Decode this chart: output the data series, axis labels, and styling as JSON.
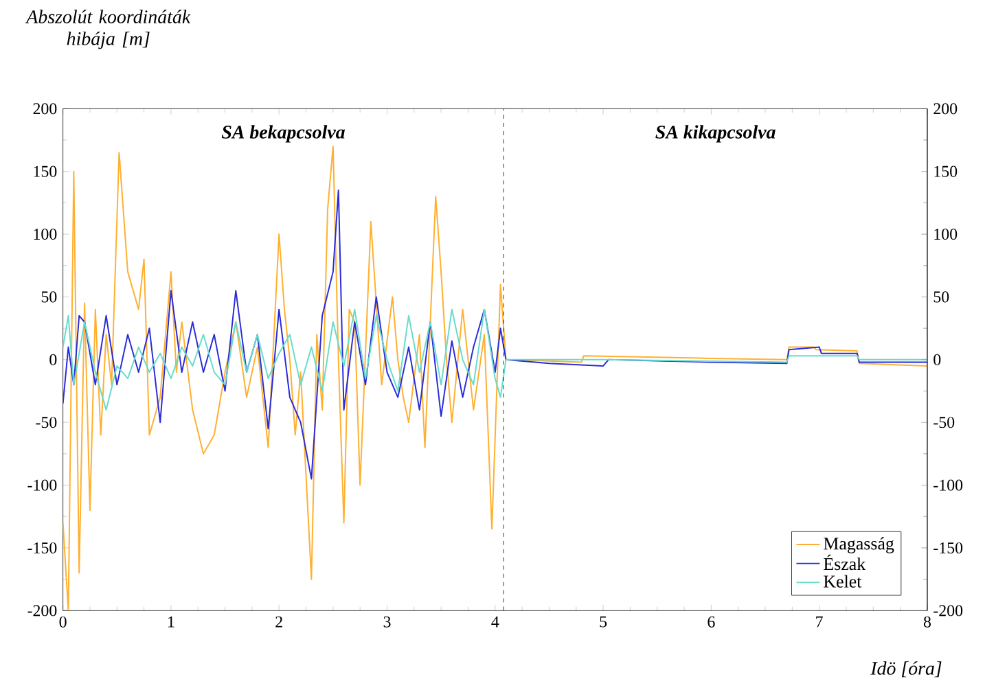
{
  "chart_data": {
    "type": "line",
    "xlabel": "Idö [óra]",
    "ylabel": "Abszolút koordináták hibája [m]",
    "xlim": [
      0,
      8
    ],
    "xticks": [
      0,
      1,
      2,
      3,
      4,
      5,
      6,
      7,
      8
    ],
    "ylim": [
      -200,
      200
    ],
    "yticks": [
      -200,
      -150,
      -100,
      -50,
      0,
      50,
      100,
      150,
      200
    ],
    "y2lim": [
      -200,
      200
    ],
    "y2ticks": [
      -200,
      -150,
      -100,
      -50,
      0,
      50,
      100,
      150,
      200
    ],
    "legend": "bottom right",
    "marker": "none",
    "line_style": "solid",
    "annotations": [
      "SA bekapcsolva",
      "SA kikapcsolva"
    ],
    "ref_lines": [
      {
        "axis": "x",
        "value": 4.08,
        "line_style": "dashed",
        "color": "#000000"
      }
    ],
    "series": [
      {
        "name": "Magasság",
        "color": "#ffb030",
        "x": [
          0,
          0.05,
          0.1,
          0.15,
          0.2,
          0.25,
          0.3,
          0.35,
          0.4,
          0.45,
          0.52,
          0.6,
          0.7,
          0.75,
          0.8,
          0.9,
          0.95,
          1.0,
          1.05,
          1.1,
          1.2,
          1.3,
          1.4,
          1.5,
          1.6,
          1.7,
          1.8,
          1.9,
          2.0,
          2.05,
          2.1,
          2.15,
          2.2,
          2.3,
          2.35,
          2.4,
          2.45,
          2.5,
          2.55,
          2.6,
          2.65,
          2.7,
          2.75,
          2.85,
          2.95,
          3.05,
          3.1,
          3.15,
          3.2,
          3.3,
          3.35,
          3.45,
          3.5,
          3.55,
          3.6,
          3.7,
          3.8,
          3.9,
          3.97,
          4.05,
          4.1,
          4.5,
          4.8,
          4.82,
          5.5,
          6.0,
          6.7,
          6.72,
          6.95,
          6.97,
          7.35,
          7.37,
          8.0
        ],
        "values": [
          -130,
          -200,
          150,
          -170,
          45,
          -120,
          40,
          -60,
          20,
          -20,
          165,
          70,
          40,
          80,
          -60,
          -30,
          20,
          70,
          -10,
          30,
          -40,
          -75,
          -60,
          -10,
          30,
          -30,
          10,
          -70,
          100,
          40,
          0,
          -60,
          -10,
          -175,
          20,
          -40,
          120,
          170,
          0,
          -130,
          40,
          30,
          -100,
          110,
          -20,
          50,
          0,
          -30,
          -50,
          20,
          -70,
          130,
          70,
          0,
          -50,
          40,
          -40,
          20,
          -135,
          60,
          0,
          -1,
          -2,
          3,
          2,
          1,
          0,
          10,
          10,
          8,
          7,
          -3,
          -5
        ]
      },
      {
        "name": "Észak",
        "color": "#2b2bdb",
        "x": [
          0,
          0.05,
          0.1,
          0.15,
          0.2,
          0.3,
          0.4,
          0.5,
          0.6,
          0.7,
          0.8,
          0.9,
          1.0,
          1.1,
          1.2,
          1.3,
          1.4,
          1.5,
          1.6,
          1.7,
          1.8,
          1.9,
          2.0,
          2.1,
          2.2,
          2.3,
          2.4,
          2.5,
          2.55,
          2.6,
          2.7,
          2.8,
          2.9,
          3.0,
          3.1,
          3.2,
          3.3,
          3.4,
          3.5,
          3.6,
          3.7,
          3.8,
          3.9,
          4.0,
          4.05,
          4.1,
          4.5,
          5.0,
          5.05,
          6.0,
          6.7,
          6.72,
          7.0,
          7.02,
          7.35,
          7.37,
          8.0
        ],
        "values": [
          -35,
          10,
          -20,
          35,
          30,
          -20,
          35,
          -20,
          20,
          -10,
          25,
          -50,
          55,
          -10,
          30,
          -10,
          20,
          -25,
          55,
          -10,
          20,
          -55,
          40,
          -30,
          -50,
          -95,
          35,
          70,
          135,
          -40,
          30,
          -20,
          50,
          -10,
          -30,
          10,
          -40,
          30,
          -45,
          15,
          -30,
          10,
          40,
          -10,
          25,
          0,
          -3,
          -5,
          0,
          -2,
          -3,
          8,
          10,
          5,
          5,
          -2,
          -2
        ]
      },
      {
        "name": "Kelet",
        "color": "#66dccc",
        "x": [
          0,
          0.05,
          0.1,
          0.2,
          0.3,
          0.4,
          0.5,
          0.6,
          0.7,
          0.8,
          0.9,
          1.0,
          1.1,
          1.2,
          1.3,
          1.4,
          1.5,
          1.6,
          1.7,
          1.8,
          1.9,
          2.0,
          2.1,
          2.2,
          2.3,
          2.4,
          2.5,
          2.6,
          2.7,
          2.8,
          2.9,
          3.0,
          3.1,
          3.2,
          3.3,
          3.4,
          3.5,
          3.6,
          3.7,
          3.8,
          3.9,
          4.0,
          4.05,
          4.1,
          5.0,
          6.7,
          6.72,
          7.35,
          7.37,
          8.0
        ],
        "values": [
          10,
          35,
          -20,
          30,
          -10,
          -40,
          -5,
          -15,
          10,
          -10,
          5,
          -15,
          10,
          -5,
          20,
          -10,
          -20,
          30,
          -10,
          20,
          -15,
          5,
          20,
          -20,
          10,
          -25,
          30,
          -5,
          40,
          -15,
          35,
          0,
          -25,
          35,
          -10,
          30,
          -20,
          40,
          0,
          -20,
          40,
          -15,
          -30,
          0,
          0,
          -2,
          3,
          3,
          0,
          0
        ]
      }
    ]
  }
}
